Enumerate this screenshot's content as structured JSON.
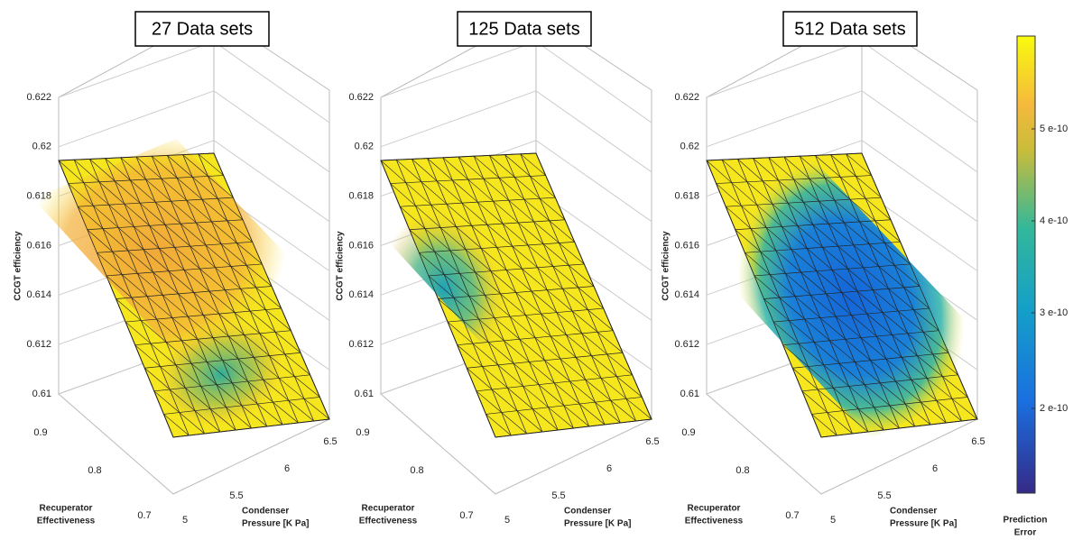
{
  "panels": [
    {
      "title": "27  Data sets",
      "z_axis": {
        "label": "CCGT efficiency",
        "ticks": [
          0.622,
          0.62,
          0.618,
          0.616,
          0.614,
          0.612,
          0.61
        ]
      },
      "y_axis": {
        "label_lines": [
          "Recuperator",
          "Effectiveness"
        ],
        "ticks": [
          0.9,
          0.8,
          0.7
        ]
      },
      "x_axis": {
        "label_lines": [
          "Condenser",
          "Pressure  [K Pa]"
        ],
        "ticks": [
          5,
          5.5,
          6,
          6.5
        ]
      }
    },
    {
      "title": "125  Data sets",
      "z_axis": {
        "label": "CCGT efficiency",
        "ticks": [
          0.622,
          0.62,
          0.618,
          0.616,
          0.614,
          0.612,
          0.61
        ]
      },
      "y_axis": {
        "label_lines": [
          "Recuperator",
          "Effectiveness"
        ],
        "ticks": [
          0.9,
          0.8,
          0.7
        ]
      },
      "x_axis": {
        "label_lines": [
          "Condenser",
          "Pressure      [K Pa]"
        ],
        "ticks": [
          5,
          5.5,
          6,
          6.5
        ]
      }
    },
    {
      "title": "512  Data sets",
      "z_axis": {
        "label": "CCGT efficiency",
        "ticks": [
          0.622,
          0.62,
          0.618,
          0.616,
          0.614,
          0.612,
          0.61
        ]
      },
      "y_axis": {
        "label_lines": [
          "Recuperator",
          "Effectiveness"
        ],
        "ticks": [
          0.9,
          0.8,
          0.7
        ]
      },
      "x_axis": {
        "label_lines": [
          "Condenser",
          "Pressure  [K Pa]"
        ],
        "ticks": [
          5,
          5.5,
          6,
          6.5
        ]
      }
    }
  ],
  "colorbar": {
    "ticks": [
      "5 e-10",
      "4 e-10",
      "3 e-10",
      "2 e-10"
    ],
    "label_lines": [
      "Prediction",
      "Error"
    ]
  }
}
